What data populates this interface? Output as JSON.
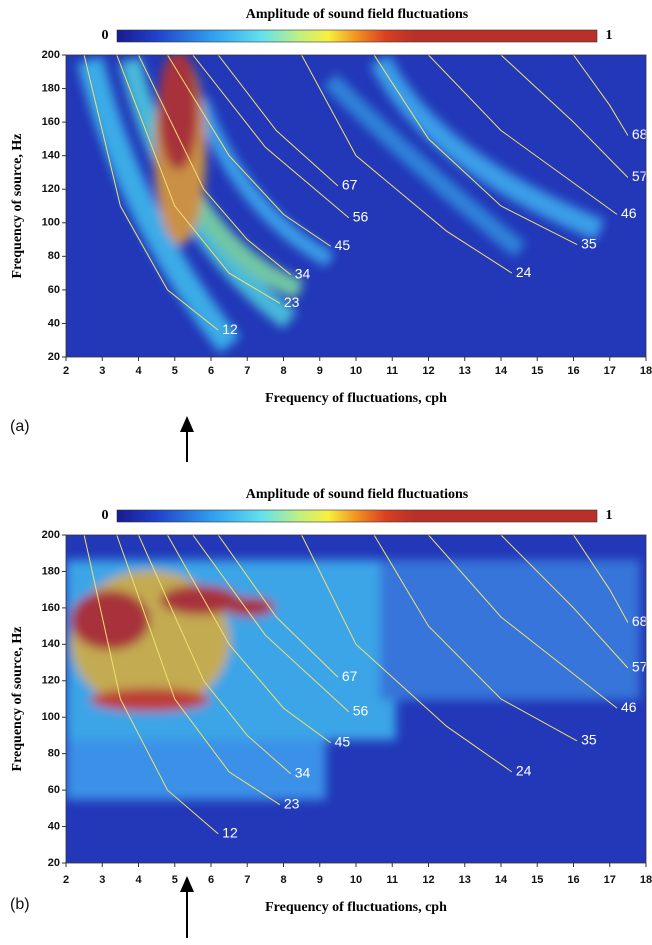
{
  "chart_data": [
    {
      "type": "heatmap",
      "panel_label": "(a)",
      "title": "Amplitude of sound field fluctuations",
      "clim": [
        0,
        1
      ],
      "colorbar_ticks": [
        0,
        1
      ],
      "xlabel": "Frequency of fluctuations, cph",
      "ylabel": "Frequency of source, Hz",
      "xlim": [
        2,
        18
      ],
      "ylim": [
        20,
        200
      ],
      "xticks": [
        2,
        3,
        4,
        5,
        6,
        7,
        8,
        9,
        10,
        11,
        12,
        13,
        14,
        15,
        16,
        17,
        18
      ],
      "yticks": [
        20,
        40,
        60,
        80,
        100,
        120,
        140,
        160,
        180,
        200
      ],
      "curve_color": "#f0e070",
      "curves": [
        {
          "label": "12",
          "x": [
            2.5,
            3.5,
            4.8,
            6.2
          ],
          "y": [
            200,
            110,
            60,
            36
          ]
        },
        {
          "label": "23",
          "x": [
            3.4,
            5,
            6.5,
            7.9
          ],
          "y": [
            200,
            110,
            70,
            52
          ]
        },
        {
          "label": "34",
          "x": [
            4,
            5.8,
            7,
            8.2
          ],
          "y": [
            200,
            120,
            90,
            69
          ]
        },
        {
          "label": "45",
          "x": [
            4.8,
            6.5,
            8,
            9.3
          ],
          "y": [
            200,
            140,
            105,
            86
          ]
        },
        {
          "label": "56",
          "x": [
            5.5,
            7.5,
            9.8
          ],
          "y": [
            200,
            145,
            103
          ]
        },
        {
          "label": "67",
          "x": [
            6.2,
            7.8,
            9.5
          ],
          "y": [
            200,
            155,
            122
          ]
        },
        {
          "label": "24",
          "x": [
            8.5,
            10,
            12.5,
            14.3
          ],
          "y": [
            200,
            140,
            95,
            70
          ]
        },
        {
          "label": "35",
          "x": [
            10.5,
            12,
            14,
            16.1
          ],
          "y": [
            200,
            150,
            110,
            87
          ]
        },
        {
          "label": "46",
          "x": [
            12,
            14,
            17.2
          ],
          "y": [
            200,
            155,
            105
          ]
        },
        {
          "label": "57",
          "x": [
            14,
            16,
            17.5
          ],
          "y": [
            200,
            160,
            127
          ]
        },
        {
          "label": "68",
          "x": [
            16,
            17,
            17.5
          ],
          "y": [
            200,
            170,
            152
          ]
        }
      ]
    },
    {
      "type": "heatmap",
      "panel_label": "(b)",
      "title": "Amplitude of sound field fluctuations",
      "clim": [
        0,
        1
      ],
      "colorbar_ticks": [
        0,
        1
      ],
      "xlabel": "Frequency of fluctuations, cph",
      "ylabel": "Frequency of source, Hz",
      "xlim": [
        2,
        18
      ],
      "ylim": [
        20,
        200
      ],
      "xticks": [
        2,
        3,
        4,
        5,
        6,
        7,
        8,
        9,
        10,
        11,
        12,
        13,
        14,
        15,
        16,
        17,
        18
      ],
      "yticks": [
        20,
        40,
        60,
        80,
        100,
        120,
        140,
        160,
        180,
        200
      ],
      "curve_color": "#f0e070",
      "curves": [
        {
          "label": "12",
          "x": [
            2.5,
            3.5,
            4.8,
            6.2
          ],
          "y": [
            200,
            110,
            60,
            36
          ]
        },
        {
          "label": "23",
          "x": [
            3.4,
            5,
            6.5,
            7.9
          ],
          "y": [
            200,
            110,
            70,
            52
          ]
        },
        {
          "label": "34",
          "x": [
            4,
            5.8,
            7,
            8.2
          ],
          "y": [
            200,
            120,
            90,
            69
          ]
        },
        {
          "label": "45",
          "x": [
            4.8,
            6.5,
            8,
            9.3
          ],
          "y": [
            200,
            140,
            105,
            86
          ]
        },
        {
          "label": "56",
          "x": [
            5.5,
            7.5,
            9.8
          ],
          "y": [
            200,
            145,
            103
          ]
        },
        {
          "label": "67",
          "x": [
            6.2,
            7.8,
            9.5
          ],
          "y": [
            200,
            155,
            122
          ]
        },
        {
          "label": "24",
          "x": [
            8.5,
            10,
            12.5,
            14.3
          ],
          "y": [
            200,
            140,
            95,
            70
          ]
        },
        {
          "label": "35",
          "x": [
            10.5,
            12,
            14,
            16.1
          ],
          "y": [
            200,
            150,
            110,
            87
          ]
        },
        {
          "label": "46",
          "x": [
            12,
            14,
            17.2
          ],
          "y": [
            200,
            155,
            105
          ]
        },
        {
          "label": "57",
          "x": [
            14,
            16,
            17.5
          ],
          "y": [
            200,
            160,
            127
          ]
        },
        {
          "label": "68",
          "x": [
            16,
            17,
            17.5
          ],
          "y": [
            200,
            170,
            152
          ]
        }
      ]
    }
  ]
}
